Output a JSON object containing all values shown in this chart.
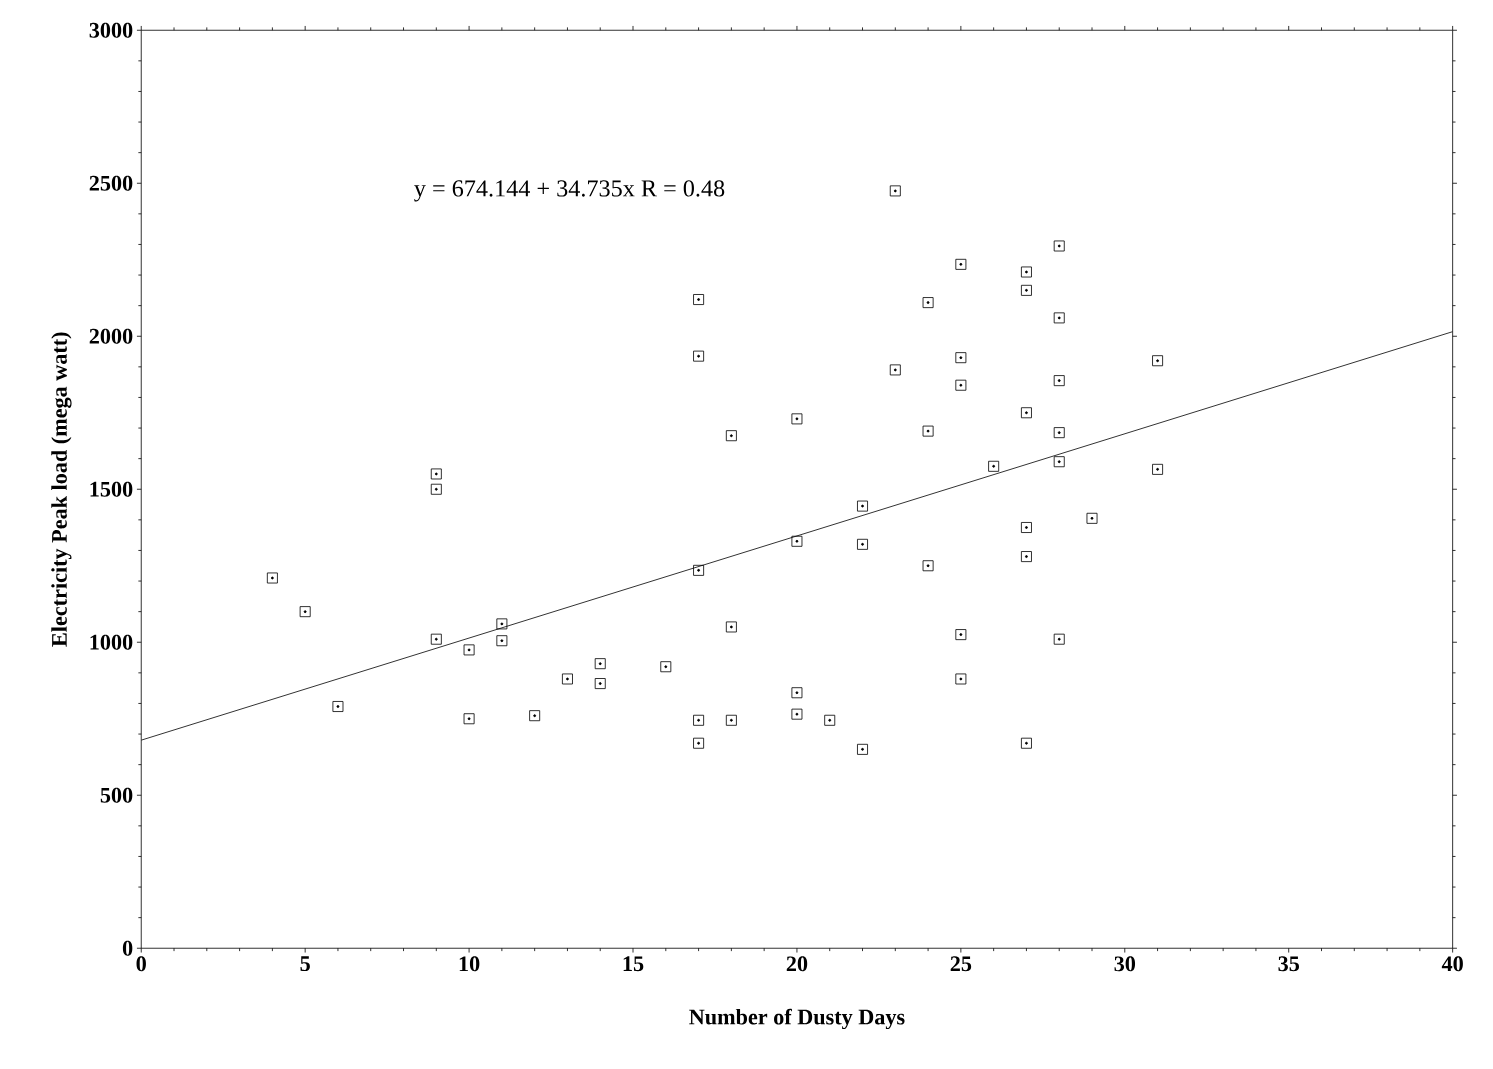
{
  "chart_data": {
    "type": "scatter",
    "xlabel": "Number of Dusty Days",
    "ylabel": "Electricity Peak load (mega watt)",
    "xlim": [
      0,
      40
    ],
    "ylim": [
      0,
      3000
    ],
    "xticks": [
      0,
      5,
      10,
      15,
      20,
      25,
      30,
      35,
      40
    ],
    "yticks": [
      0,
      500,
      1000,
      1500,
      2000,
      2500,
      3000
    ],
    "grid": false,
    "marker": "square",
    "annotations": [
      "y = 674.144 + 34.735x  R = 0.48"
    ],
    "series": [
      {
        "color": "#000000",
        "x": [
          4,
          5,
          6,
          9,
          9,
          9,
          10,
          10,
          11,
          11,
          12,
          13,
          14,
          14,
          16,
          17,
          17,
          17,
          17,
          17,
          18,
          18,
          18,
          20,
          20,
          20,
          20,
          21,
          22,
          22,
          22,
          23,
          23,
          24,
          24,
          24,
          25,
          25,
          25,
          25,
          25,
          26,
          27,
          27,
          27,
          27,
          27,
          27,
          28,
          28,
          28,
          28,
          28,
          28,
          29,
          31,
          31
        ],
        "values": [
          1210,
          1100,
          790,
          1550,
          1500,
          1010,
          975,
          750,
          1060,
          1005,
          760,
          880,
          930,
          865,
          920,
          2120,
          1935,
          1235,
          745,
          670,
          1675,
          1050,
          745,
          1730,
          1330,
          835,
          765,
          745,
          1445,
          1320,
          650,
          2475,
          1890,
          2110,
          1690,
          1250,
          2235,
          1930,
          1840,
          1025,
          880,
          1575,
          2210,
          2150,
          1750,
          1375,
          1280,
          670,
          2295,
          2060,
          1855,
          1685,
          1590,
          1010,
          1405,
          1920,
          1565
        ]
      },
      {
        "type": "line",
        "color": "#000000",
        "marker": "none",
        "line_style": "solid",
        "x": [
          0,
          40
        ],
        "values": [
          680,
          2015
        ]
      }
    ]
  }
}
